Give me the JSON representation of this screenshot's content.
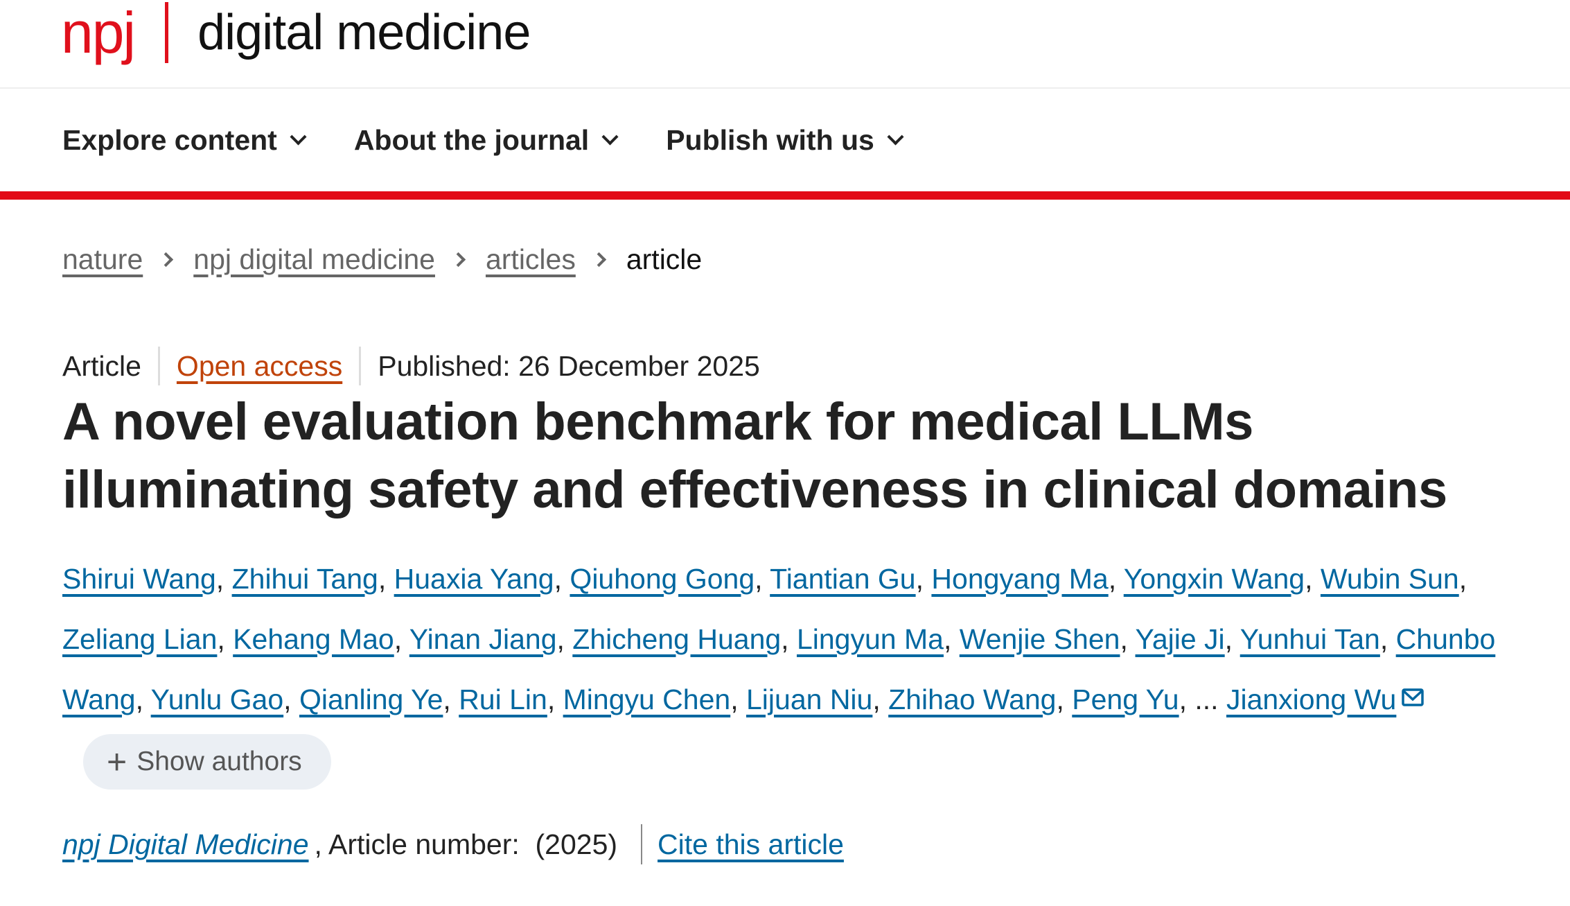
{
  "logo": {
    "brand": "npj",
    "name": "digital medicine"
  },
  "nav": [
    {
      "label": "Explore content"
    },
    {
      "label": "About the journal"
    },
    {
      "label": "Publish with us"
    }
  ],
  "breadcrumb": {
    "items": [
      "nature",
      "npj digital medicine",
      "articles"
    ],
    "current": "article"
  },
  "meta": {
    "type": "Article",
    "access": "Open access",
    "published": "Published: 26 December 2025"
  },
  "title": "A novel evaluation benchmark for medical LLMs illuminating safety and effectiveness in clinical domains",
  "authors": [
    "Shirui Wang",
    "Zhihui Tang",
    "Huaxia Yang",
    "Qiuhong Gong",
    "Tiantian Gu",
    "Hongyang Ma",
    "Yongxin Wang",
    "Wubin Sun",
    "Zeliang Lian",
    "Kehang Mao",
    "Yinan Jiang",
    "Zhicheng Huang",
    "Lingyun Ma",
    "Wenjie Shen",
    "Yajie Ji",
    "Yunhui Tan",
    "Chunbo Wang",
    "Yunlu Gao",
    "Qianling Ye",
    "Rui Lin",
    "Mingyu Chen",
    "Lijuan Niu",
    "Zhihao Wang",
    "Peng Yu"
  ],
  "ellipsis": "...",
  "last_author": "Jianxiong Wu",
  "show_authors": "Show authors",
  "citation": {
    "journal": "npj Digital Medicine",
    "article_number": ", Article number:  (2025)",
    "cite": "Cite this article"
  },
  "colors": {
    "brand_red": "#e20a16",
    "link": "#0067a0",
    "open_access": "#c0430a"
  }
}
